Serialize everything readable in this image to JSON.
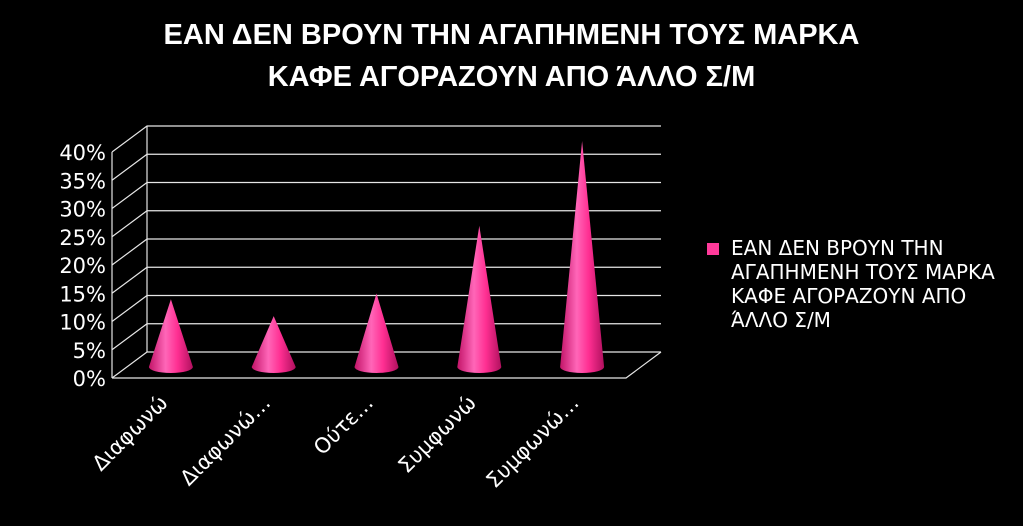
{
  "chart_data": {
    "type": "bar",
    "style": "3d-cone",
    "title_lines": [
      "ΕΑΝ ΔΕΝ ΒΡΟΥΝ ΤΗΝ ΑΓΑΠΗΜΕΝΗ ΤΟΥΣ ΜΑΡΚΑ",
      "ΚΑΦΕ ΑΓΟΡΑΖΟΥΝ ΑΠΟ ΆΛΛΟ Σ/Μ"
    ],
    "categories": [
      "Διαφωνώ",
      "Διαφωνώ…",
      "Ούτε…",
      "Συμφωνώ",
      "Συμφωνώ…"
    ],
    "series": [
      {
        "name": "ΕΑΝ ΔΕΝ ΒΡΟΥΝ ΤΗΝ ΑΓΑΠΗΜΕΝΗ ΤΟΥΣ ΜΑΡΚΑ ΚΑΦΕ ΑΓΟΡΑΖΟΥΝ ΑΠΟ ΆΛΛΟ Σ/Μ",
        "values": [
          0.12,
          0.09,
          0.13,
          0.25,
          0.4
        ],
        "color": "#ff3a9a"
      }
    ],
    "y_ticks": [
      "0%",
      "5%",
      "10%",
      "15%",
      "20%",
      "25%",
      "30%",
      "35%",
      "40%"
    ],
    "ylim": [
      0,
      0.4
    ],
    "grid": true,
    "legend_position": "right",
    "background": "#000000"
  }
}
